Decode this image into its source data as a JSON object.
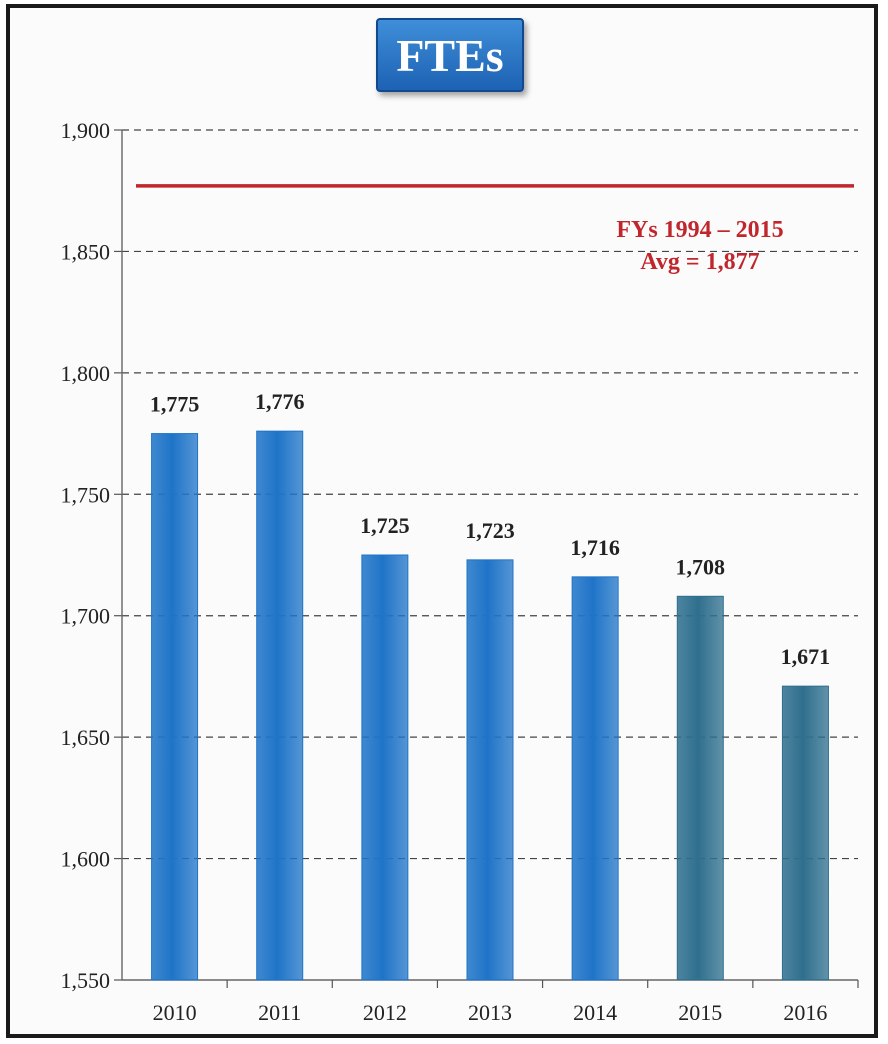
{
  "chart_data": {
    "type": "bar",
    "title": "FTEs",
    "categories": [
      "2010",
      "2011",
      "2012",
      "2013",
      "2014",
      "2015",
      "2016"
    ],
    "values": [
      1775,
      1776,
      1725,
      1723,
      1716,
      1708,
      1671
    ],
    "value_labels": [
      "1,775",
      "1,776",
      "1,725",
      "1,723",
      "1,716",
      "1,708",
      "1,671"
    ],
    "ylim": [
      1550,
      1900
    ],
    "yticks": [
      1550,
      1600,
      1650,
      1700,
      1750,
      1800,
      1850,
      1900
    ],
    "ytick_labels": [
      "1,550",
      "1,600",
      "1,650",
      "1,700",
      "1,750",
      "1,800",
      "1,850",
      "1,900"
    ],
    "grid": true,
    "bar_colors": [
      "#1f74c8",
      "#1f74c8",
      "#1f74c8",
      "#1f74c8",
      "#1f74c8",
      "#2f6f8e",
      "#2f6f8e"
    ],
    "reference_line": {
      "value": 1877,
      "color": "#c0262c",
      "label_line1": "FYs 1994 – 2015",
      "label_line2": "Avg = 1,877"
    }
  }
}
